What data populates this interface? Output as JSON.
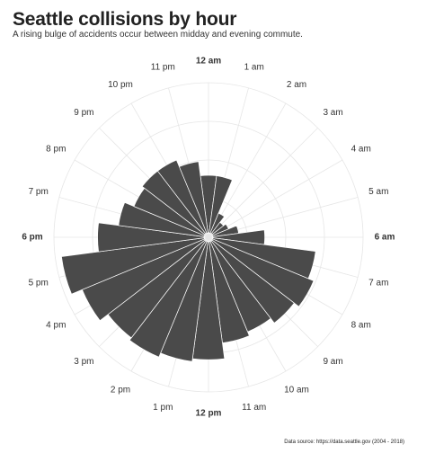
{
  "title": "Seattle collisions by hour",
  "subtitle": "A rising bulge of accidents occur between midday and evening commute.",
  "caption": "Data source: https://data.seattle.gov  (2004 - 2018)",
  "colors": {
    "bar": "#4a4a4a",
    "bar_edge": "#ffffff",
    "grid": "#e6e6e6",
    "text": "#333333"
  },
  "chart_data": {
    "type": "bar",
    "coordinate_system": "polar",
    "title": "Seattle collisions by hour",
    "subtitle": "A rising bulge of accidents occur between midday and evening commute.",
    "categories": [
      "12 am",
      "1 am",
      "2 am",
      "3 am",
      "4 am",
      "5 am",
      "6 am",
      "7 am",
      "8 am",
      "9 am",
      "10 am",
      "11 am",
      "12 pm",
      "1 pm",
      "2 pm",
      "3 pm",
      "4 pm",
      "5 pm",
      "6 pm",
      "7 pm",
      "8 pm",
      "9 pm",
      "10 pm",
      "11 pm"
    ],
    "bold_categories": [
      "12 am",
      "6 am",
      "12 pm",
      "6 pm"
    ],
    "values": [
      0.4,
      0.4,
      0.15,
      0.1,
      0.12,
      0.18,
      0.36,
      0.72,
      0.76,
      0.72,
      0.68,
      0.71,
      0.82,
      0.84,
      0.87,
      0.85,
      0.92,
      1.0,
      0.74,
      0.6,
      0.53,
      0.55,
      0.55,
      0.5
    ],
    "value_scale": "relative (max = 1)",
    "grid": true,
    "legend": "none"
  }
}
